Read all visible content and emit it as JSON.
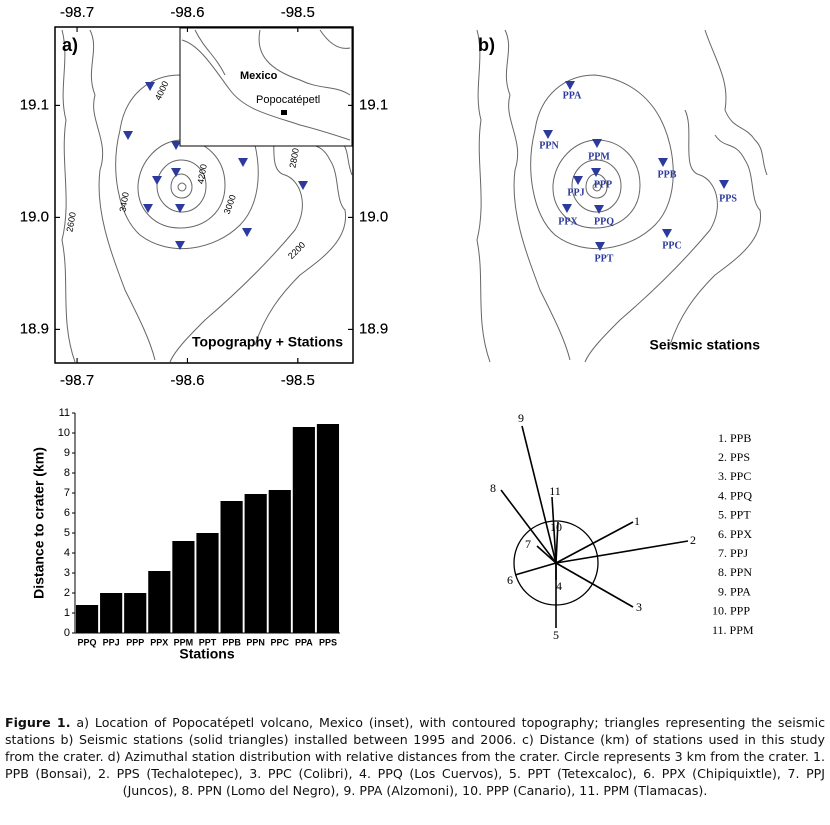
{
  "panel_a": {
    "label": "a)",
    "title": "Topography + Stations",
    "inset_labels": [
      "Mexico",
      "Popocatépetl"
    ],
    "contour_labels": [
      "4000",
      "4200",
      "3400",
      "3000",
      "2600",
      "2800",
      "2600",
      "2200"
    ]
  },
  "panel_b": {
    "label": "b)",
    "title": "Seismic stations",
    "stations": [
      "PPA",
      "PPN",
      "PPM",
      "PPB",
      "PPJ",
      "PPP",
      "PPX",
      "PPQ",
      "PPS",
      "PPC",
      "PPT"
    ]
  },
  "map_axes": {
    "xlim": [
      -98.72,
      -98.45
    ],
    "ylim": [
      18.87,
      19.17
    ],
    "xticks": [
      -98.7,
      -98.6,
      -98.5
    ],
    "yticks": [
      18.9,
      {
        "value": 19.0,
        "label": "19.0"
      },
      19.1
    ]
  },
  "chart_data": {
    "type": "bar",
    "categories": [
      "PPQ",
      "PPJ",
      "PPP",
      "PPX",
      "PPM",
      "PPT",
      "PPB",
      "PPN",
      "PPC",
      "PPA",
      "PPS"
    ],
    "values": [
      1.4,
      2.0,
      2.0,
      3.1,
      4.6,
      5.0,
      6.6,
      6.95,
      7.15,
      10.3,
      10.45
    ],
    "color": "#000000",
    "ylim": [
      0,
      11
    ],
    "yticks": [
      0,
      1,
      2,
      3,
      4,
      5,
      6,
      7,
      8,
      9,
      10,
      11
    ],
    "xlabel": "Stations",
    "ylabel": "Distance to crater (km)",
    "grid": false
  },
  "panel_d": {
    "diagram_labels": [
      "1",
      "2",
      "3",
      "4",
      "5",
      "6",
      "7",
      "8",
      "9",
      "10",
      "11"
    ],
    "legend": [
      "1. PPB",
      "2. PPS",
      "3. PPC",
      "4. PPQ",
      "5. PPT",
      "6. PPX",
      "7. PPJ",
      "8. PPN",
      "9. PPA",
      "10. PPP",
      "11. PPM"
    ]
  },
  "caption": {
    "label": "Figure 1.",
    "text": "a) Location of Popocatépetl volcano, Mexico (inset), with contoured topography; triangles representing the seismic stations b) Seismic stations (solid triangles) installed between 1995 and 2006. c) Distance (km) of stations used in this study from the crater. d) Azimuthal station distribution with relative distances from the crater. Circle represents 3 km from the crater. 1. PPB (Bonsai), 2. PPS (Techalotepec), 3. PPC (Colibri), 4. PPQ (Los Cuervos), 5. PPT (Tetexcaloc), 6. PPX (Chipiquixtle), 7. PPJ (Juncos), 8. PPN (Lomo del Negro), 9. PPA (Alzomoni), 10. PPP (Canario), 11. PPM (Tlamacas)."
  }
}
